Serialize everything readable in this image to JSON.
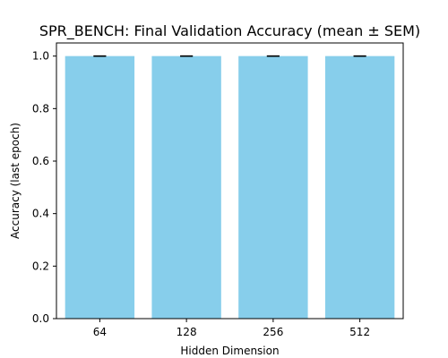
{
  "chart_data": {
    "type": "bar",
    "title": "SPR_BENCH: Final Validation Accuracy (mean ± SEM)",
    "xlabel": "Hidden Dimension",
    "ylabel": "Accuracy (last epoch)",
    "categories": [
      "64",
      "128",
      "256",
      "512"
    ],
    "values": [
      1.0,
      1.0,
      1.0,
      1.0
    ],
    "errors": [
      0.0,
      0.0,
      0.0,
      0.0
    ],
    "ylim": [
      0,
      1.05
    ],
    "yticks": [
      "0.0",
      "0.2",
      "0.4",
      "0.6",
      "0.8",
      "1.0"
    ],
    "bar_color": "#87ceeb",
    "error_color": "#000000",
    "grid": false,
    "legend": "none"
  }
}
